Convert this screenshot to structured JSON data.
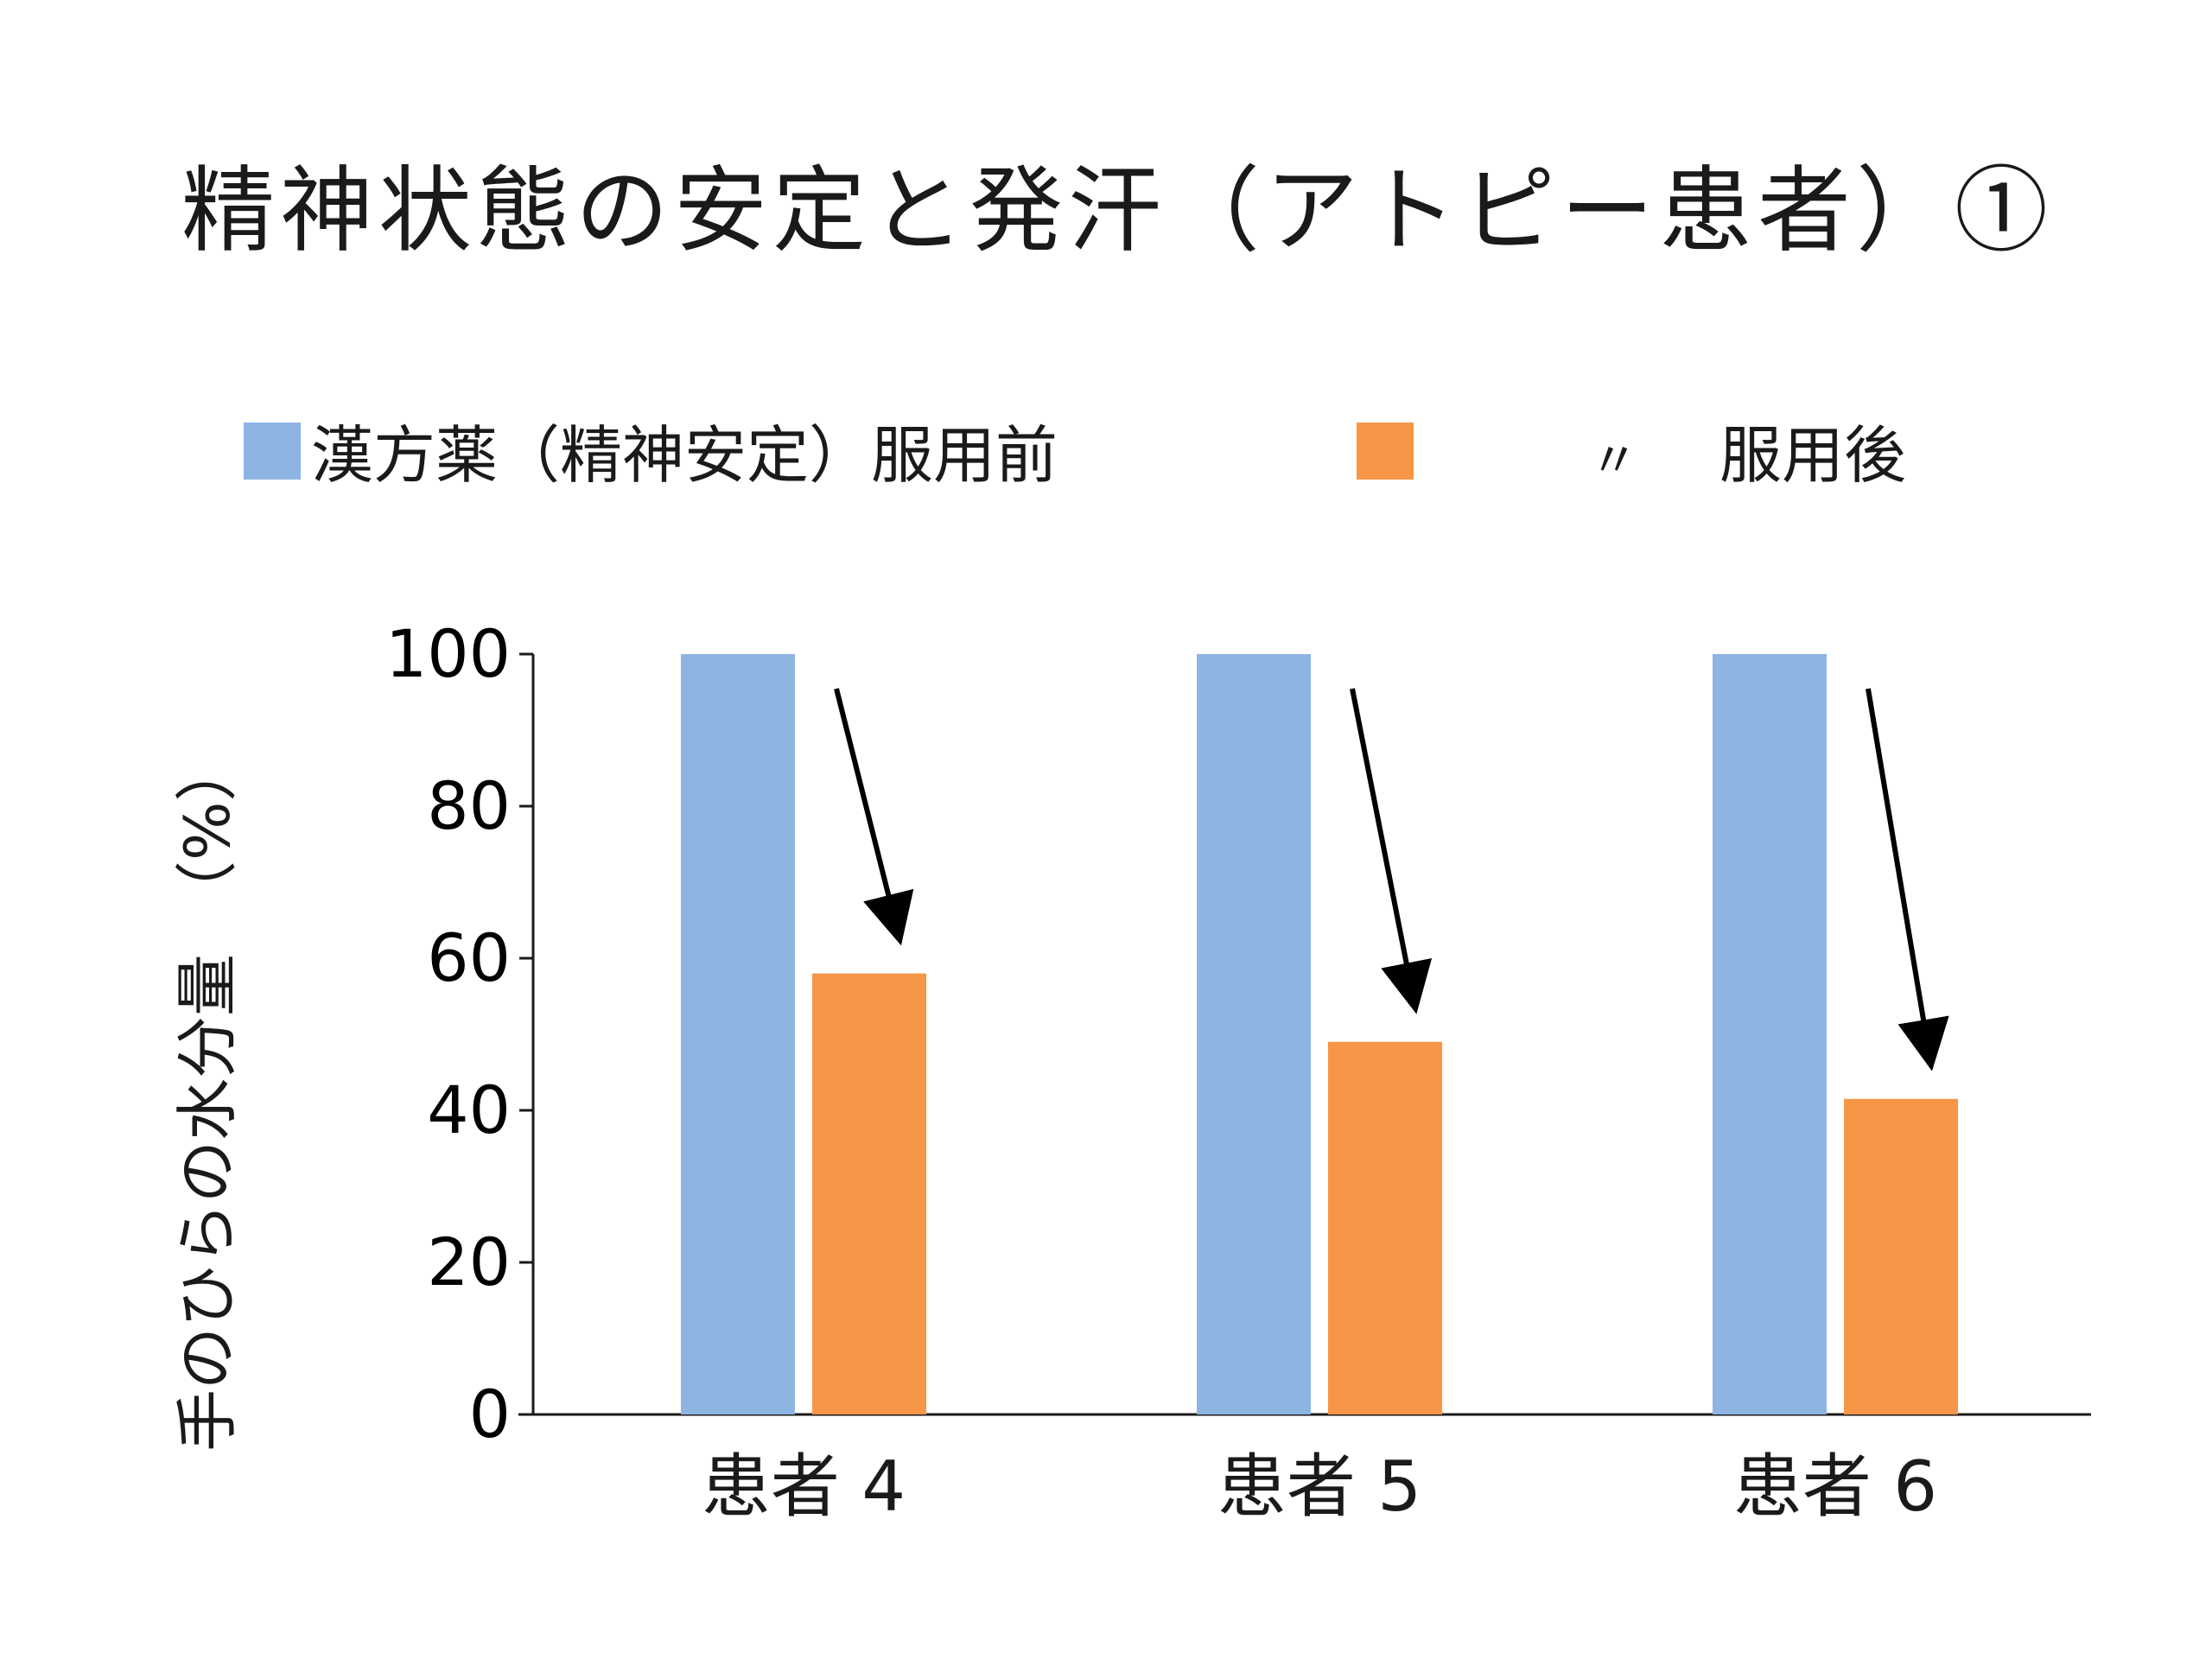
{
  "slide": {
    "title": "精神状態の安定と発汗（アトピー患者）①"
  },
  "chart_data": {
    "type": "bar",
    "categories": [
      "患者 4",
      "患者 5",
      "患者 6"
    ],
    "series": [
      {
        "name": "漢方薬（精神安定）服用前",
        "values": [
          100,
          100,
          100
        ],
        "color": "#8eb4e3"
      },
      {
        "name": "〃　服用後",
        "values": [
          58,
          49,
          41.5
        ],
        "color": "#f79646"
      }
    ],
    "legend": {
      "position": "top",
      "entries": [
        {
          "label": "漢方薬（精神安定）服用前",
          "color": "#8eb4e3"
        },
        {
          "label": "〃",
          "color": "#f79646"
        },
        {
          "label": "服用後"
        }
      ]
    },
    "ylabel": "手のひらの水分量　（%）",
    "ylim": [
      0,
      100
    ],
    "yticks": [
      0,
      20,
      40,
      60,
      80,
      100
    ],
    "grid": false,
    "annotations": "downward arrows from before-bar to after-bar for each patient"
  }
}
